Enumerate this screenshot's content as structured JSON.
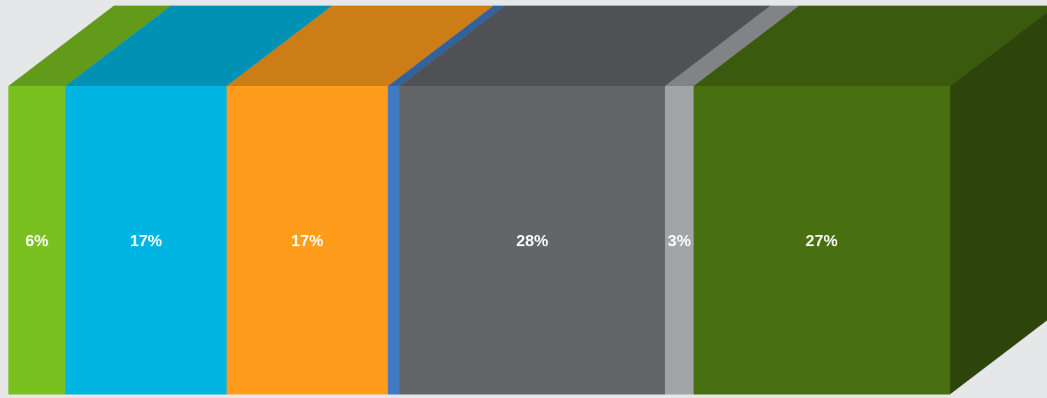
{
  "chart_data": {
    "type": "bar",
    "variant": "3d-stacked-100-percent",
    "title": "",
    "xlabel": "",
    "ylabel": "",
    "segments": [
      {
        "value": 6,
        "label": "6%",
        "color": "#7ac11f"
      },
      {
        "value": 17,
        "label": "17%",
        "color": "#00b5e2"
      },
      {
        "value": 17,
        "label": "17%",
        "color": "#ff9c1c"
      },
      {
        "value": 1.2,
        "label": "",
        "color": "#3f7ac2"
      },
      {
        "value": 28,
        "label": "28%",
        "color": "#646569"
      },
      {
        "value": 3,
        "label": "3%",
        "color": "#a2a4a8"
      },
      {
        "value": 27,
        "label": "27%",
        "color": "#487010"
      }
    ],
    "grid": false,
    "legend": "none"
  }
}
